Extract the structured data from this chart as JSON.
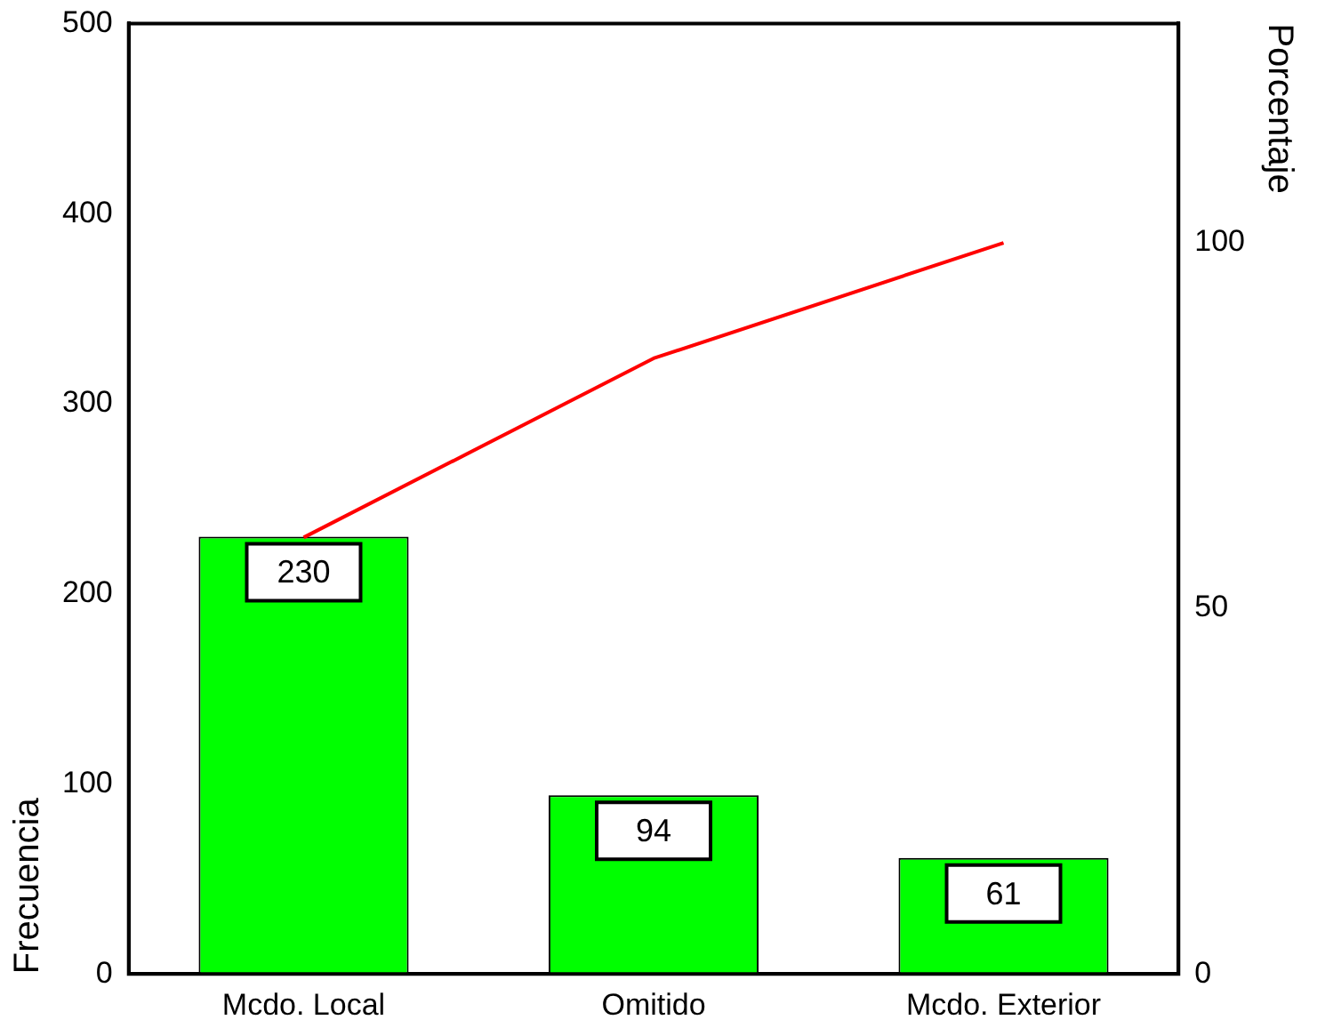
{
  "chart_data": {
    "type": "bar",
    "categories": [
      "Mcdo. Local",
      "Omitido",
      "Mcdo. Exterior"
    ],
    "ylabel": "Frecuencia",
    "y2label": "Porcentaje",
    "series": [
      {
        "color": "#00ff00",
        "values": [
          230,
          94,
          61
        ],
        "value_labels": [
          "230",
          "94",
          "61"
        ]
      },
      {
        "type": "line",
        "axis": "y2",
        "color": "#ff0000",
        "values": [
          59.7,
          84.2,
          100
        ]
      }
    ],
    "ylim": [
      0,
      500
    ],
    "yticks": [
      0,
      100,
      200,
      300,
      400,
      500
    ],
    "y2lim": [
      0,
      130
    ],
    "y2ticks": [
      0,
      50,
      100
    ],
    "grid": false,
    "legend": false,
    "marker": "none",
    "line_style": "solid"
  }
}
